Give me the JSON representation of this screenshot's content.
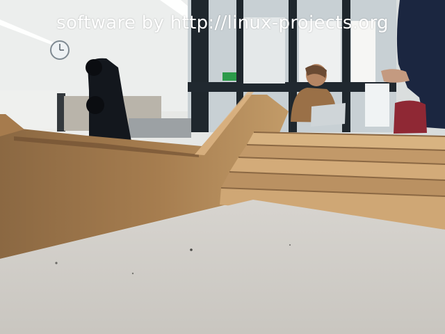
{
  "photo": {
    "watermark": "software by http://linux-projects.org",
    "subject": "camera view from the surface of a board showing a wooden ramp-and-stairs model in a room",
    "colors": {
      "ceiling": "#f2f2ef",
      "back_wall": "#e7e8e6",
      "window_frame": "#1d2328",
      "board_surface": "#d7d4cf",
      "wood_dark": "#9b7348",
      "wood_light": "#c8a06d",
      "robot_part": "#13171d",
      "sweater": "#1b2640"
    }
  }
}
